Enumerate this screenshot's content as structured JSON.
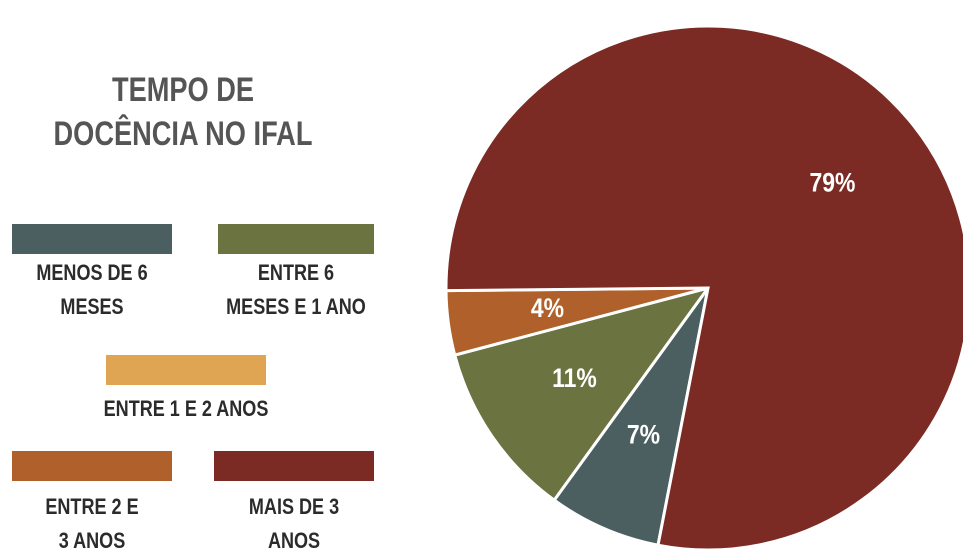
{
  "chart_data": {
    "type": "pie",
    "title": "TEMPO DE DOCÊNCIA NO IFAL",
    "categories": [
      "MENOS DE 6 MESES",
      "ENTRE 6 MESES E 1 ANO",
      "ENTRE 1 E 2 ANOS",
      "ENTRE 2 E 3 ANOS",
      "MAIS DE 3 ANOS"
    ],
    "values": [
      7,
      11,
      0,
      4,
      79
    ],
    "value_labels": [
      "7%",
      "11%",
      null,
      "4%",
      "79%"
    ],
    "colors": [
      "#4b5f61",
      "#6b7341",
      "#dfa552",
      "#b0602a",
      "#7b2b23"
    ]
  }
}
